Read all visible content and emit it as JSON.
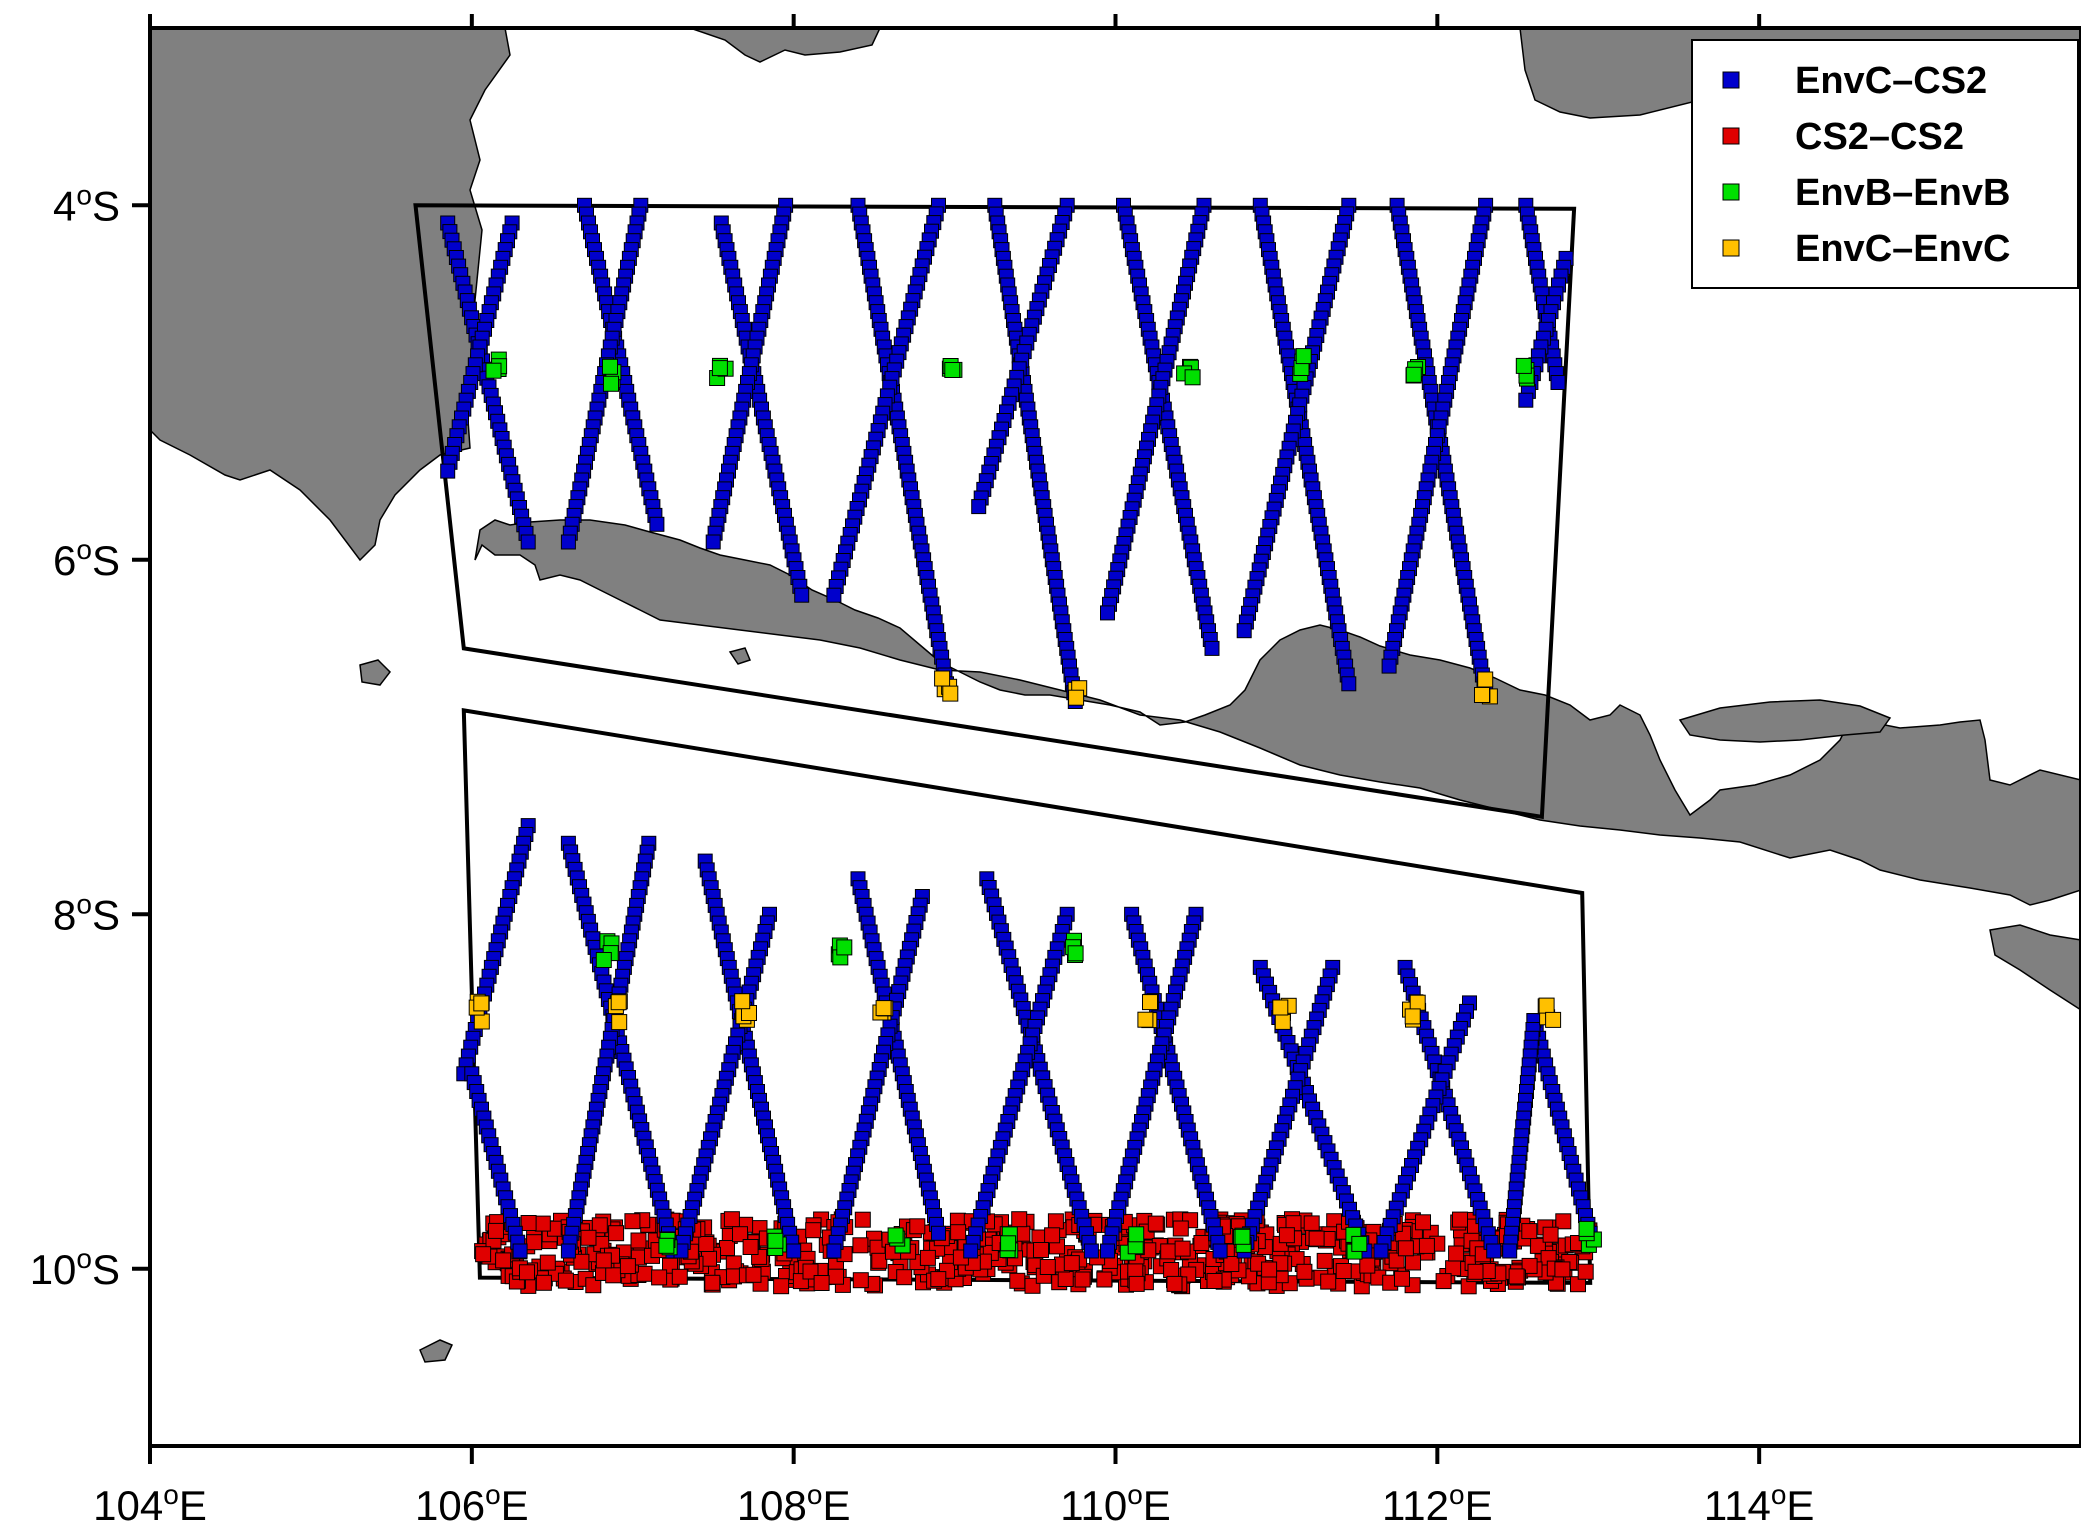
{
  "map": {
    "lon_range": [
      104,
      116
    ],
    "lat_range": [
      -11,
      -3
    ],
    "land_color": "#808080",
    "sea_color": "#ffffff",
    "x_ticks": [
      {
        "lon": 104,
        "num": "104",
        "sup": "o",
        "hemi": "E"
      },
      {
        "lon": 106,
        "num": "106",
        "sup": "o",
        "hemi": "E"
      },
      {
        "lon": 108,
        "num": "108",
        "sup": "o",
        "hemi": "E"
      },
      {
        "lon": 110,
        "num": "110",
        "sup": "o",
        "hemi": "E"
      },
      {
        "lon": 112,
        "num": "112",
        "sup": "o",
        "hemi": "E"
      },
      {
        "lon": 114,
        "num": "114",
        "sup": "o",
        "hemi": "E"
      }
    ],
    "y_ticks": [
      {
        "lat": -4,
        "num": "4",
        "sup": "o",
        "hemi": "S"
      },
      {
        "lat": -6,
        "num": "6",
        "sup": "o",
        "hemi": "S"
      },
      {
        "lat": -8,
        "num": "8",
        "sup": "o",
        "hemi": "S"
      },
      {
        "lat": -10,
        "num": "10",
        "sup": "o",
        "hemi": "S"
      }
    ],
    "regions": [
      {
        "name": "north",
        "corners": [
          [
            105.65,
            -4.0
          ],
          [
            112.85,
            -4.02
          ],
          [
            112.65,
            -7.45
          ],
          [
            105.95,
            -6.5
          ]
        ]
      },
      {
        "name": "south",
        "corners": [
          [
            105.95,
            -6.85
          ],
          [
            112.9,
            -7.88
          ],
          [
            112.95,
            -10.08
          ],
          [
            106.05,
            -10.05
          ]
        ]
      }
    ]
  },
  "legend": {
    "position": "top-right",
    "items": [
      {
        "label": "EnvC–CS2",
        "color": "#0000cc"
      },
      {
        "label": "CS2–CS2",
        "color": "#e00000"
      },
      {
        "label": "EnvB–EnvB",
        "color": "#00e000"
      },
      {
        "label": "EnvC–EnvC",
        "color": "#ffc000"
      }
    ]
  },
  "chart_data": {
    "type": "scatter",
    "xlabel": "",
    "ylabel": "",
    "xlim": [
      104,
      116
    ],
    "ylim": [
      -11,
      -3
    ],
    "series": [
      {
        "name": "EnvC–CS2",
        "color": "#0000cc",
        "tracks_north": [
          [
            [
              105.85,
              -4.1
            ],
            [
              106.35,
              -5.9
            ]
          ],
          [
            [
              106.25,
              -4.1
            ],
            [
              105.85,
              -5.5
            ]
          ],
          [
            [
              106.7,
              -4.0
            ],
            [
              107.15,
              -5.8
            ]
          ],
          [
            [
              107.05,
              -4.0
            ],
            [
              106.6,
              -5.9
            ]
          ],
          [
            [
              107.55,
              -4.1
            ],
            [
              108.05,
              -6.2
            ]
          ],
          [
            [
              107.95,
              -4.0
            ],
            [
              107.5,
              -5.9
            ]
          ],
          [
            [
              108.4,
              -4.0
            ],
            [
              108.95,
              -6.7
            ]
          ],
          [
            [
              108.9,
              -4.0
            ],
            [
              108.25,
              -6.2
            ]
          ],
          [
            [
              109.25,
              -4.0
            ],
            [
              109.75,
              -6.8
            ]
          ],
          [
            [
              109.7,
              -4.0
            ],
            [
              109.15,
              -5.7
            ]
          ],
          [
            [
              110.05,
              -4.0
            ],
            [
              110.6,
              -6.5
            ]
          ],
          [
            [
              110.55,
              -4.0
            ],
            [
              109.95,
              -6.3
            ]
          ],
          [
            [
              110.9,
              -4.0
            ],
            [
              111.45,
              -6.7
            ]
          ],
          [
            [
              111.45,
              -4.0
            ],
            [
              110.8,
              -6.4
            ]
          ],
          [
            [
              111.75,
              -4.0
            ],
            [
              112.3,
              -6.75
            ]
          ],
          [
            [
              112.3,
              -4.0
            ],
            [
              111.7,
              -6.6
            ]
          ],
          [
            [
              112.55,
              -4.0
            ],
            [
              112.75,
              -5.0
            ]
          ],
          [
            [
              112.8,
              -4.3
            ],
            [
              112.55,
              -5.1
            ]
          ]
        ],
        "tracks_south": [
          [
            [
              106.35,
              -7.5
            ],
            [
              105.95,
              -8.9
            ]
          ],
          [
            [
              106.0,
              -8.9
            ],
            [
              106.3,
              -9.9
            ]
          ],
          [
            [
              106.6,
              -7.6
            ],
            [
              107.25,
              -9.9
            ]
          ],
          [
            [
              107.1,
              -7.6
            ],
            [
              106.6,
              -9.9
            ]
          ],
          [
            [
              107.45,
              -7.7
            ],
            [
              108.0,
              -9.9
            ]
          ],
          [
            [
              107.85,
              -8.0
            ],
            [
              107.3,
              -9.9
            ]
          ],
          [
            [
              108.4,
              -7.8
            ],
            [
              108.9,
              -9.8
            ]
          ],
          [
            [
              108.8,
              -7.9
            ],
            [
              108.25,
              -9.9
            ]
          ],
          [
            [
              109.2,
              -7.8
            ],
            [
              109.85,
              -9.9
            ]
          ],
          [
            [
              109.7,
              -8.0
            ],
            [
              109.1,
              -9.9
            ]
          ],
          [
            [
              110.1,
              -8.0
            ],
            [
              110.65,
              -9.9
            ]
          ],
          [
            [
              110.5,
              -8.0
            ],
            [
              109.95,
              -9.9
            ]
          ],
          [
            [
              110.9,
              -8.3
            ],
            [
              111.55,
              -9.9
            ]
          ],
          [
            [
              111.35,
              -8.3
            ],
            [
              110.8,
              -9.9
            ]
          ],
          [
            [
              111.8,
              -8.3
            ],
            [
              112.35,
              -9.9
            ]
          ],
          [
            [
              112.2,
              -8.5
            ],
            [
              111.65,
              -9.9
            ]
          ],
          [
            [
              112.6,
              -8.6
            ],
            [
              112.95,
              -9.8
            ]
          ],
          [
            [
              112.6,
              -8.6
            ],
            [
              112.45,
              -9.9
            ]
          ]
        ]
      },
      {
        "name": "CS2–CS2",
        "color": "#e00000",
        "band": {
          "lon": [
            106.05,
            112.95
          ],
          "lat": [
            -9.72,
            -10.1
          ],
          "count": 700
        }
      },
      {
        "name": "EnvB–EnvB",
        "color": "#00e000",
        "points": [
          [
            106.15,
            -4.9
          ],
          [
            106.85,
            -4.95
          ],
          [
            107.55,
            -4.95
          ],
          [
            109.0,
            -4.9
          ],
          [
            110.45,
            -4.95
          ],
          [
            111.15,
            -4.9
          ],
          [
            111.85,
            -4.95
          ],
          [
            112.55,
            -4.95
          ],
          [
            106.85,
            -8.2
          ],
          [
            108.3,
            -8.2
          ],
          [
            109.75,
            -8.2
          ],
          [
            107.2,
            -9.82
          ],
          [
            107.9,
            -9.85
          ],
          [
            108.65,
            -9.85
          ],
          [
            109.35,
            -9.85
          ],
          [
            110.1,
            -9.85
          ],
          [
            110.8,
            -9.85
          ],
          [
            111.5,
            -9.85
          ],
          [
            112.95,
            -9.82
          ]
        ]
      },
      {
        "name": "EnvC–EnvC",
        "color": "#ffc000",
        "points": [
          [
            108.95,
            -6.7
          ],
          [
            109.75,
            -6.72
          ],
          [
            112.3,
            -6.72
          ],
          [
            106.05,
            -8.55
          ],
          [
            106.9,
            -8.55
          ],
          [
            107.7,
            -8.55
          ],
          [
            108.55,
            -8.55
          ],
          [
            110.2,
            -8.55
          ],
          [
            111.05,
            -8.55
          ],
          [
            111.85,
            -8.55
          ],
          [
            112.7,
            -8.55
          ]
        ]
      }
    ]
  }
}
